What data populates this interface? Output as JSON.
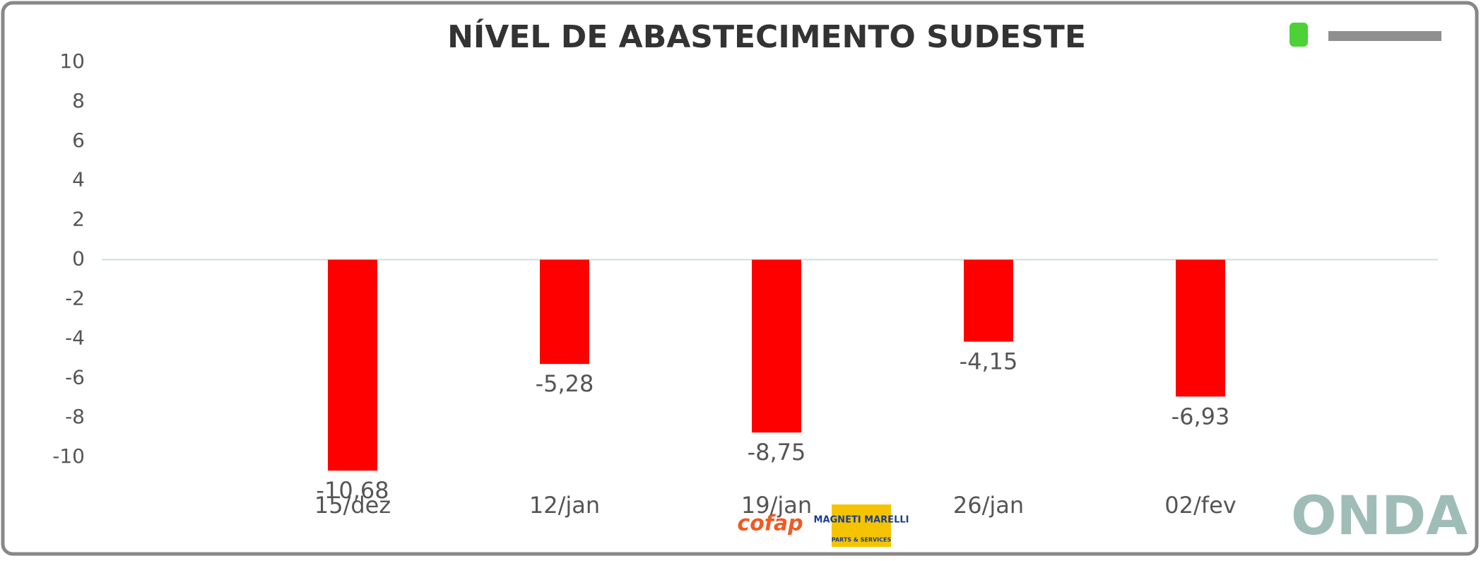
{
  "chart_data": {
    "type": "bar",
    "title": "NÍVEL DE ABASTECIMENTO SUDESTE",
    "categories": [
      "15/dez",
      "12/jan",
      "19/jan",
      "26/jan",
      "02/fev"
    ],
    "values": [
      -10.68,
      -5.28,
      -8.75,
      -4.15,
      -6.93
    ],
    "value_labels": [
      "-10,68",
      "-5,28",
      "-8,75",
      "-4,15",
      "-6,93"
    ],
    "color": "#ff0000",
    "ylim": [
      -12,
      10
    ],
    "yticks": [
      -10,
      -8,
      -6,
      -4,
      -2,
      0,
      2,
      4,
      6,
      8,
      10
    ],
    "grid": false
  },
  "logos": {
    "cofap": "cofap",
    "marelli": "MAGNETI MARELLI",
    "marelli_sub": "PARTS & SERVICES",
    "onda": "ONDA"
  }
}
